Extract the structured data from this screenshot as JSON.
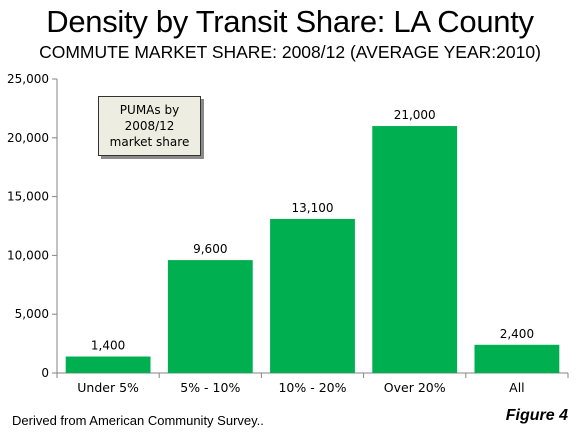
{
  "title": "Density by Transit Share: LA County",
  "subtitle": "COMMUTE MARKET SHARE: 2008/12 (AVERAGE YEAR:2010)",
  "annotation_box": [
    "PUMAs by",
    "2008/12",
    "market share"
  ],
  "source": "Derived from American Community Survey..",
  "figure_label": "Figure 4",
  "colors": {
    "bar": "#00b050",
    "axis": "#868686"
  },
  "chart_data": {
    "type": "bar",
    "categories": [
      "Under 5%",
      "5% - 10%",
      "10% - 20%",
      "Over 20%",
      "All"
    ],
    "values": [
      1400,
      9600,
      13100,
      21000,
      2400
    ],
    "value_labels": [
      "1,400",
      "9,600",
      "13,100",
      "21,000",
      "2,400"
    ],
    "yticks": [
      "0",
      "5,000",
      "10,000",
      "15,000",
      "20,000",
      "25,000"
    ],
    "ylim": [
      0,
      25000
    ],
    "grid": false,
    "legend": "none"
  }
}
